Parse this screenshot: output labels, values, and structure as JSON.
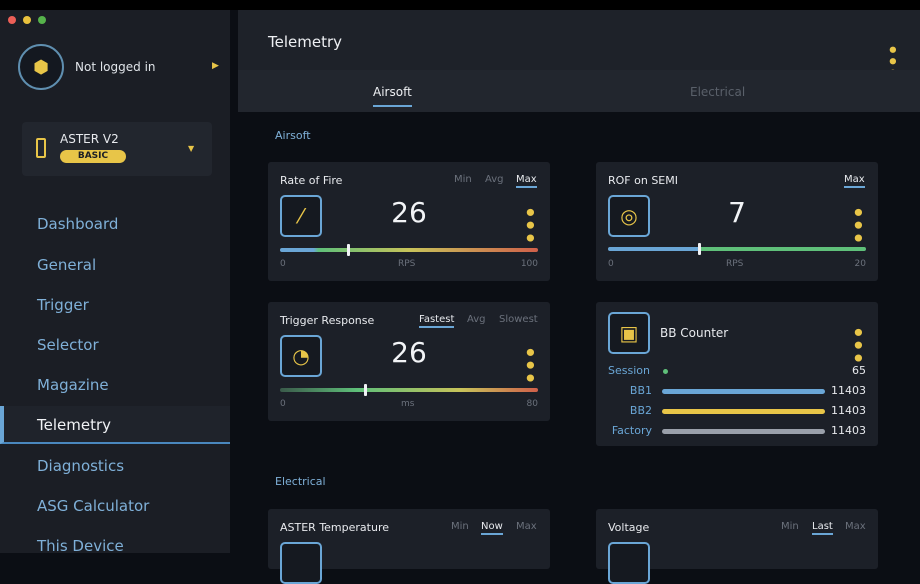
{
  "window": {
    "buttons": [
      "close",
      "minimize",
      "maximize"
    ]
  },
  "user": {
    "status": "Not logged in"
  },
  "device": {
    "name": "ASTER V2",
    "tier": "BASIC"
  },
  "nav": [
    "Dashboard",
    "General",
    "Trigger",
    "Selector",
    "Magazine",
    "Telemetry",
    "Diagnostics",
    "ASG Calculator",
    "This Device"
  ],
  "header": {
    "title": "Telemetry"
  },
  "tabs": [
    "Airsoft",
    "Electrical"
  ],
  "sections": {
    "airsoft": "Airsoft",
    "electrical": "Electrical"
  },
  "cards": {
    "rof": {
      "title": "Rate of Fire",
      "options": [
        "Min",
        "Avg",
        "Max"
      ],
      "selected": "Max",
      "value": "26",
      "unit": "RPS",
      "min": "0",
      "max": "100",
      "progress": 0.26
    },
    "rof_semi": {
      "title": "ROF on SEMI",
      "options": [
        "Max"
      ],
      "value": "7",
      "unit": "RPS",
      "min": "0",
      "max": "20",
      "progress": 0.35
    },
    "trigger": {
      "title": "Trigger Response",
      "options": [
        "Fastest",
        "Avg",
        "Slowest"
      ],
      "selected": "Fastest",
      "value": "26",
      "unit": "ms",
      "min": "0",
      "max": "80",
      "progress": 0.325
    },
    "bb": {
      "title": "BB Counter",
      "rows": [
        {
          "label": "Session",
          "value": "65"
        },
        {
          "label": "BB1",
          "value": "11403"
        },
        {
          "label": "BB2",
          "value": "11403"
        },
        {
          "label": "Factory",
          "value": "11403"
        }
      ]
    },
    "temp": {
      "title": "ASTER Temperature",
      "options": [
        "Min",
        "Now",
        "Max"
      ]
    },
    "voltage": {
      "title": "Voltage",
      "options": [
        "Min",
        "Last",
        "Max"
      ]
    }
  },
  "colors": {
    "accent": "#e8c548",
    "blue": "#6aa6d6",
    "bg": "#0b0e14"
  }
}
